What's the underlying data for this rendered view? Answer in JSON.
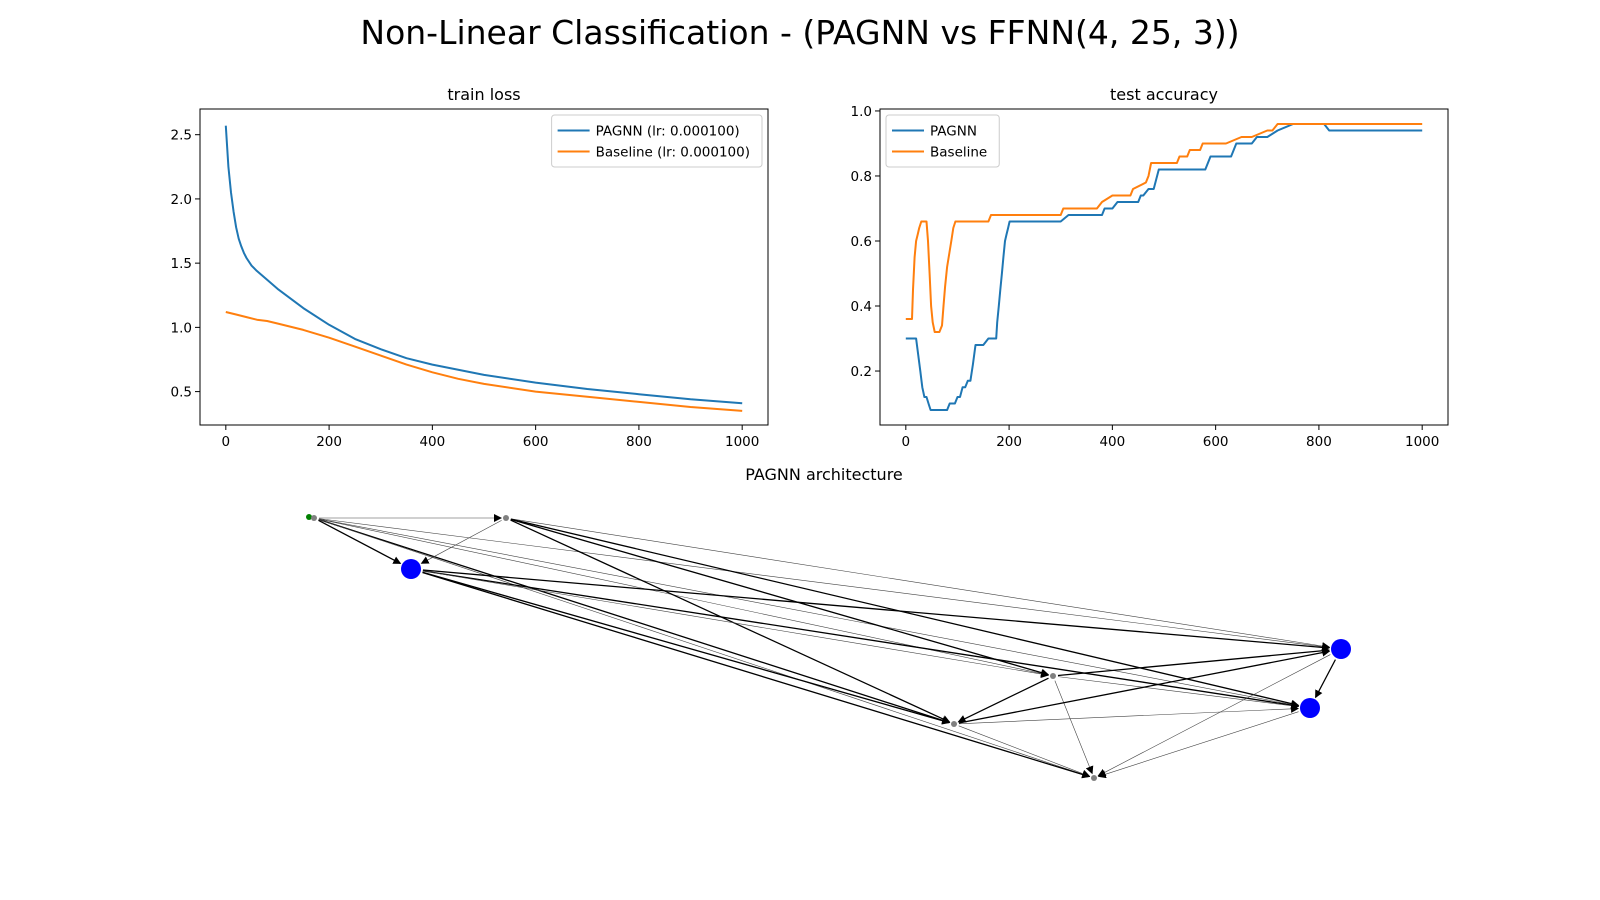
{
  "figure": {
    "title": "Non-Linear Classification - (PAGNN vs FFNN(4, 25, 3))"
  },
  "chart_data": [
    {
      "type": "line",
      "title": "train loss",
      "xlabel": "",
      "ylabel": "",
      "xlim": [
        -50,
        1050
      ],
      "ylim": [
        0.24,
        2.7
      ],
      "xticks": [
        0,
        200,
        400,
        600,
        800,
        1000
      ],
      "yticks": [
        0.5,
        1.0,
        1.5,
        2.0,
        2.5
      ],
      "xtick_labels": [
        "0",
        "200",
        "400",
        "600",
        "800",
        "1000"
      ],
      "ytick_labels": [
        "0.5",
        "1.0",
        "1.5",
        "2.0",
        "2.5"
      ],
      "legend": "upper-right",
      "grid": false,
      "series": [
        {
          "name": "PAGNN (lr: 0.000100)",
          "color": "#1f77b4",
          "x": [
            0,
            5,
            10,
            15,
            20,
            25,
            30,
            35,
            40,
            50,
            60,
            80,
            100,
            150,
            200,
            250,
            300,
            350,
            400,
            500,
            600,
            700,
            800,
            900,
            1000
          ],
          "y": [
            2.57,
            2.25,
            2.05,
            1.9,
            1.78,
            1.69,
            1.63,
            1.58,
            1.54,
            1.48,
            1.44,
            1.37,
            1.3,
            1.15,
            1.02,
            0.91,
            0.83,
            0.76,
            0.71,
            0.63,
            0.57,
            0.52,
            0.48,
            0.44,
            0.41
          ]
        },
        {
          "name": "Baseline (lr: 0.000100)",
          "color": "#ff7f0e",
          "x": [
            0,
            20,
            40,
            60,
            80,
            100,
            150,
            200,
            250,
            300,
            350,
            400,
            450,
            500,
            600,
            700,
            800,
            900,
            1000
          ],
          "y": [
            1.12,
            1.1,
            1.08,
            1.06,
            1.05,
            1.03,
            0.98,
            0.92,
            0.85,
            0.78,
            0.71,
            0.65,
            0.6,
            0.56,
            0.5,
            0.46,
            0.42,
            0.38,
            0.35
          ]
        }
      ]
    },
    {
      "type": "line",
      "title": "test accuracy",
      "xlabel": "",
      "ylabel": "",
      "xlim": [
        -50,
        1050
      ],
      "ylim": [
        0.034,
        1.006
      ],
      "xticks": [
        0,
        200,
        400,
        600,
        800,
        1000
      ],
      "yticks": [
        0.2,
        0.4,
        0.6,
        0.8,
        1.0
      ],
      "xtick_labels": [
        "0",
        "200",
        "400",
        "600",
        "800",
        "1000"
      ],
      "ytick_labels": [
        "0.2",
        "0.4",
        "0.6",
        "0.8",
        "1.0"
      ],
      "legend": "upper-left",
      "grid": false,
      "series": [
        {
          "name": "PAGNN",
          "color": "#1f77b4",
          "x": [
            0,
            20,
            24,
            28,
            32,
            36,
            40,
            44,
            48,
            80,
            85,
            95,
            100,
            105,
            110,
            115,
            120,
            125,
            130,
            135,
            150,
            160,
            175,
            177,
            180,
            183,
            186,
            189,
            192,
            195,
            198,
            201,
            300,
            315,
            380,
            385,
            400,
            410,
            450,
            455,
            460,
            470,
            480,
            490,
            500,
            580,
            585,
            590,
            630,
            640,
            670,
            680,
            700,
            720,
            750,
            810,
            820,
            1000
          ],
          "y": [
            0.3,
            0.3,
            0.25,
            0.2,
            0.15,
            0.12,
            0.12,
            0.1,
            0.08,
            0.08,
            0.1,
            0.1,
            0.12,
            0.12,
            0.15,
            0.15,
            0.17,
            0.17,
            0.22,
            0.28,
            0.28,
            0.3,
            0.3,
            0.35,
            0.4,
            0.45,
            0.5,
            0.55,
            0.6,
            0.62,
            0.64,
            0.66,
            0.66,
            0.68,
            0.68,
            0.7,
            0.7,
            0.72,
            0.72,
            0.74,
            0.74,
            0.76,
            0.76,
            0.82,
            0.82,
            0.82,
            0.84,
            0.86,
            0.86,
            0.9,
            0.9,
            0.92,
            0.92,
            0.94,
            0.96,
            0.96,
            0.94,
            0.94
          ]
        },
        {
          "name": "Baseline",
          "color": "#ff7f0e",
          "x": [
            0,
            12,
            14,
            17,
            20,
            23,
            26,
            30,
            40,
            43,
            46,
            49,
            52,
            56,
            65,
            70,
            73,
            76,
            80,
            84,
            88,
            92,
            96,
            100,
            160,
            165,
            300,
            305,
            370,
            380,
            400,
            435,
            440,
            465,
            470,
            475,
            525,
            530,
            545,
            550,
            570,
            575,
            600,
            620,
            650,
            670,
            700,
            710,
            720,
            1000
          ],
          "y": [
            0.36,
            0.36,
            0.45,
            0.55,
            0.6,
            0.62,
            0.64,
            0.66,
            0.66,
            0.6,
            0.5,
            0.4,
            0.35,
            0.32,
            0.32,
            0.34,
            0.4,
            0.46,
            0.52,
            0.56,
            0.6,
            0.64,
            0.66,
            0.66,
            0.66,
            0.68,
            0.68,
            0.7,
            0.7,
            0.72,
            0.74,
            0.74,
            0.76,
            0.78,
            0.8,
            0.84,
            0.84,
            0.86,
            0.86,
            0.88,
            0.88,
            0.9,
            0.9,
            0.9,
            0.92,
            0.92,
            0.94,
            0.94,
            0.96,
            0.96
          ]
        }
      ]
    },
    {
      "type": "network",
      "title": "PAGNN architecture",
      "nodes": [
        {
          "id": "n0",
          "color": "#008000",
          "size": "tiny"
        },
        {
          "id": "n1",
          "color": "#808080",
          "size": "tiny"
        },
        {
          "id": "n2",
          "color": "#808080",
          "size": "tiny"
        },
        {
          "id": "n3",
          "color": "#0000ff",
          "size": "large"
        },
        {
          "id": "n4",
          "color": "#808080",
          "size": "tiny"
        },
        {
          "id": "n5",
          "color": "#808080",
          "size": "tiny"
        },
        {
          "id": "n6",
          "color": "#0000ff",
          "size": "large"
        },
        {
          "id": "n7",
          "color": "#0000ff",
          "size": "large"
        },
        {
          "id": "n8",
          "color": "#808080",
          "size": "tiny"
        }
      ],
      "edges": [
        {
          "from": "n1",
          "to": "n3",
          "w": "thick"
        },
        {
          "from": "n1",
          "to": "n2",
          "w": "thin"
        },
        {
          "from": "n1",
          "to": "n5",
          "w": "thick"
        },
        {
          "from": "n1",
          "to": "n6",
          "w": "thin"
        },
        {
          "from": "n1",
          "to": "n7",
          "w": "thin"
        },
        {
          "from": "n1",
          "to": "n4",
          "w": "thin"
        },
        {
          "from": "n1",
          "to": "n8",
          "w": "thin"
        },
        {
          "from": "n2",
          "to": "n3",
          "w": "thin"
        },
        {
          "from": "n2",
          "to": "n4",
          "w": "thick"
        },
        {
          "from": "n2",
          "to": "n5",
          "w": "thick"
        },
        {
          "from": "n2",
          "to": "n6",
          "w": "thin"
        },
        {
          "from": "n2",
          "to": "n7",
          "w": "thick"
        },
        {
          "from": "n3",
          "to": "n5",
          "w": "thick"
        },
        {
          "from": "n3",
          "to": "n6",
          "w": "thick"
        },
        {
          "from": "n3",
          "to": "n7",
          "w": "thick"
        },
        {
          "from": "n3",
          "to": "n8",
          "w": "thick"
        },
        {
          "from": "n3",
          "to": "n4",
          "w": "thin"
        },
        {
          "from": "n4",
          "to": "n5",
          "w": "thick"
        },
        {
          "from": "n4",
          "to": "n6",
          "w": "thick"
        },
        {
          "from": "n4",
          "to": "n7",
          "w": "thin"
        },
        {
          "from": "n4",
          "to": "n8",
          "w": "thin"
        },
        {
          "from": "n5",
          "to": "n6",
          "w": "thick"
        },
        {
          "from": "n5",
          "to": "n7",
          "w": "thin"
        },
        {
          "from": "n5",
          "to": "n8",
          "w": "thin"
        },
        {
          "from": "n6",
          "to": "n7",
          "w": "thick"
        },
        {
          "from": "n6",
          "to": "n8",
          "w": "thin"
        },
        {
          "from": "n7",
          "to": "n8",
          "w": "thin"
        }
      ]
    }
  ]
}
